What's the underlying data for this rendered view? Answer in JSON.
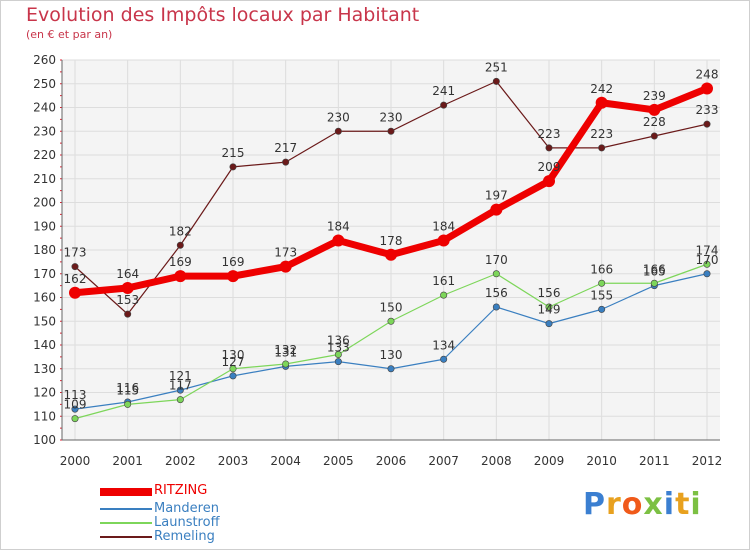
{
  "header": {
    "title": "Evolution des Impôts locaux par Habitant",
    "subtitle": "(en € et par an)"
  },
  "logo": {
    "text": "Proxiti",
    "letters": [
      "P",
      "r",
      "o",
      "x",
      "i",
      "t",
      "i"
    ],
    "colors": [
      "#3b7fd1",
      "#e8a11f",
      "#f05a1a",
      "#7cc043",
      "#3b7fd1",
      "#e8a11f",
      "#7cc043"
    ]
  },
  "chart_data": {
    "type": "line",
    "title": "Evolution des Impôts locaux par Habitant",
    "subtitle": "(en € et par an)",
    "xlabel": "",
    "ylabel": "",
    "categories": [
      "2000",
      "2001",
      "2002",
      "2003",
      "2004",
      "2005",
      "2006",
      "2007",
      "2008",
      "2009",
      "2010",
      "2011",
      "2012"
    ],
    "ylim": [
      100,
      260
    ],
    "yticks": [
      100,
      110,
      120,
      130,
      140,
      150,
      160,
      170,
      180,
      190,
      200,
      210,
      220,
      230,
      240,
      250,
      260
    ],
    "grid": true,
    "legend_position": "bottom-left",
    "series": [
      {
        "name": "RITZING",
        "color": "#ee0000",
        "values": [
          162,
          164,
          169,
          169,
          173,
          184,
          178,
          184,
          197,
          209,
          242,
          239,
          248
        ]
      },
      {
        "name": "Manderen",
        "color": "#3a7fc0",
        "values": [
          113,
          116,
          121,
          127,
          131,
          133,
          130,
          134,
          156,
          149,
          155,
          165,
          170
        ]
      },
      {
        "name": "Launstroff",
        "color": "#7dd65a",
        "values": [
          109,
          115,
          117,
          130,
          132,
          136,
          150,
          161,
          170,
          156,
          166,
          166,
          174
        ]
      },
      {
        "name": "Remeling",
        "color": "#6b1a1a",
        "values": [
          173,
          153,
          182,
          215,
          217,
          230,
          230,
          241,
          251,
          223,
          223,
          228,
          233
        ]
      }
    ]
  }
}
